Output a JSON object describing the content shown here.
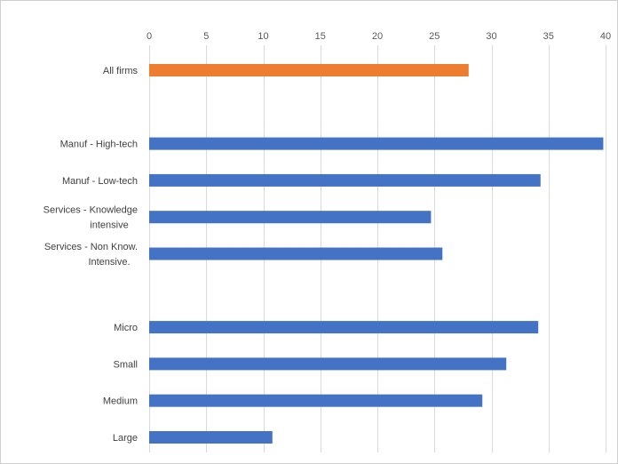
{
  "chart_data": {
    "type": "bar",
    "orientation": "horizontal",
    "x_axis_position": "top",
    "grid": true,
    "legend": "none",
    "xlim": [
      0,
      40
    ],
    "ticks": [
      0,
      5,
      10,
      15,
      20,
      25,
      30,
      35,
      40
    ],
    "categories": [
      {
        "lines": [
          "All firms"
        ],
        "value": 28,
        "color": "#ed7d31",
        "group": 0
      },
      {
        "lines": [
          "Manuf - High-tech"
        ],
        "value": 39.8,
        "color": "#4472c4",
        "group": 1
      },
      {
        "lines": [
          "Manuf - Low-tech"
        ],
        "value": 34.3,
        "color": "#4472c4",
        "group": 1
      },
      {
        "lines": [
          "Services - Knowledge",
          "intensive"
        ],
        "value": 24.7,
        "color": "#4472c4",
        "group": 1
      },
      {
        "lines": [
          "Services - Non Know.",
          "Intensive."
        ],
        "value": 25.7,
        "color": "#4472c4",
        "group": 1
      },
      {
        "lines": [
          "Micro"
        ],
        "value": 34.1,
        "color": "#4472c4",
        "group": 2
      },
      {
        "lines": [
          "Small"
        ],
        "value": 31.3,
        "color": "#4472c4",
        "group": 2
      },
      {
        "lines": [
          "Medium"
        ],
        "value": 29.2,
        "color": "#4472c4",
        "group": 2
      },
      {
        "lines": [
          "Large"
        ],
        "value": 10.8,
        "color": "#4472c4",
        "group": 2
      }
    ]
  }
}
